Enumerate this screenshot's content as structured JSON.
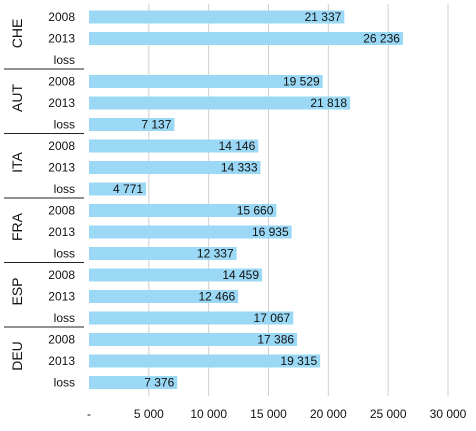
{
  "chart_data": {
    "type": "bar",
    "orientation": "horizontal",
    "bar_color": "#9ad8f5",
    "grid": true,
    "xlim": [
      0,
      30000
    ],
    "x_ticks": [
      {
        "value": 0,
        "label": "-"
      },
      {
        "value": 5000,
        "label": "5 000"
      },
      {
        "value": 10000,
        "label": "10 000"
      },
      {
        "value": 15000,
        "label": "15 000"
      },
      {
        "value": 20000,
        "label": "20 000"
      },
      {
        "value": 25000,
        "label": "25 000"
      },
      {
        "value": 30000,
        "label": "30 000"
      }
    ],
    "groups": [
      {
        "name": "CHE",
        "items": [
          {
            "category": "2008",
            "value": 21337,
            "label": "21 337"
          },
          {
            "category": "2013",
            "value": 26236,
            "label": "26 236"
          },
          {
            "category": "loss",
            "value": null,
            "label": ""
          }
        ]
      },
      {
        "name": "AUT",
        "items": [
          {
            "category": "2008",
            "value": 19529,
            "label": "19 529"
          },
          {
            "category": "2013",
            "value": 21818,
            "label": "21 818"
          },
          {
            "category": "loss",
            "value": 7137,
            "label": "7 137"
          }
        ]
      },
      {
        "name": "ITA",
        "items": [
          {
            "category": "2008",
            "value": 14146,
            "label": "14 146"
          },
          {
            "category": "2013",
            "value": 14333,
            "label": "14 333"
          },
          {
            "category": "loss",
            "value": 4771,
            "label": "4 771"
          }
        ]
      },
      {
        "name": "FRA",
        "items": [
          {
            "category": "2008",
            "value": 15660,
            "label": "15 660"
          },
          {
            "category": "2013",
            "value": 16935,
            "label": "16 935"
          },
          {
            "category": "loss",
            "value": 12337,
            "label": "12 337"
          }
        ]
      },
      {
        "name": "ESP",
        "items": [
          {
            "category": "2008",
            "value": 14459,
            "label": "14 459"
          },
          {
            "category": "2013",
            "value": 12466,
            "label": "12 466"
          },
          {
            "category": "loss",
            "value": 17067,
            "label": "17 067"
          }
        ]
      },
      {
        "name": "DEU",
        "items": [
          {
            "category": "2008",
            "value": 17386,
            "label": "17 386"
          },
          {
            "category": "2013",
            "value": 19315,
            "label": "19 315"
          },
          {
            "category": "loss",
            "value": 7376,
            "label": "7 376"
          }
        ]
      }
    ]
  }
}
